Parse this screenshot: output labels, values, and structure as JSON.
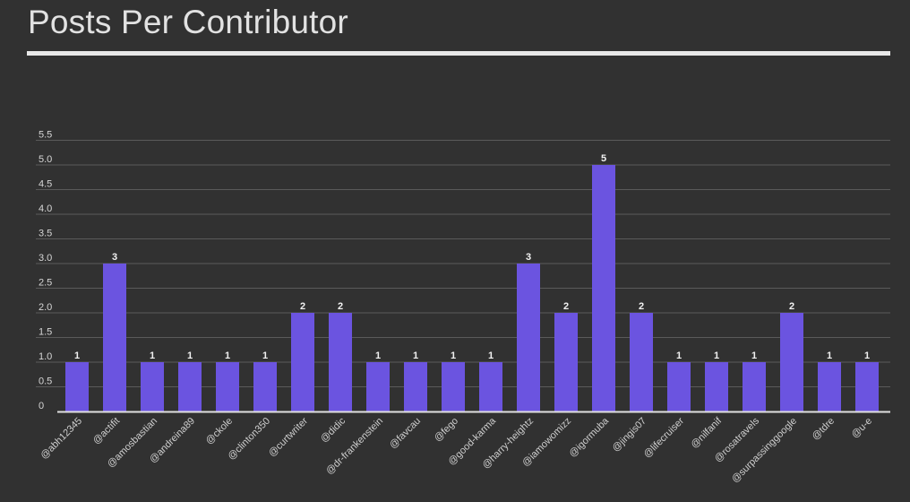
{
  "page": {
    "title": "Posts Per Contributor"
  },
  "colors": {
    "background": "#313131",
    "bar": "#6b54e0",
    "grid": "#5a5a5a",
    "axis": "#e0e0e0",
    "title_rule": "#e8e8e8"
  },
  "chart_data": {
    "type": "bar",
    "title": "Posts Per Contributor",
    "xlabel": "",
    "ylabel": "",
    "ylim": [
      0,
      5.5
    ],
    "yticks": [
      "0",
      "0.5",
      "1.0",
      "1.5",
      "2.0",
      "2.5",
      "3.0",
      "3.5",
      "4.0",
      "4.5",
      "5.0",
      "5.5"
    ],
    "grid": true,
    "legend": "none",
    "categories": [
      "@abh12345",
      "@actifit",
      "@amosbastian",
      "@andreina89",
      "@ckole",
      "@clinton350",
      "@curtwriter",
      "@didic",
      "@dr-frankenstein",
      "@favcau",
      "@fego",
      "@good-karma",
      "@harry-heightz",
      "@iamowomizz",
      "@igormuba",
      "@jingis07",
      "@lifecruiser",
      "@nilfanif",
      "@rosatravels",
      "@surpassinggoogle",
      "@tdre",
      "@u-e"
    ],
    "values": [
      1,
      3,
      1,
      1,
      1,
      1,
      2,
      2,
      1,
      1,
      1,
      1,
      3,
      2,
      5,
      2,
      1,
      1,
      1,
      2,
      1,
      1
    ]
  }
}
